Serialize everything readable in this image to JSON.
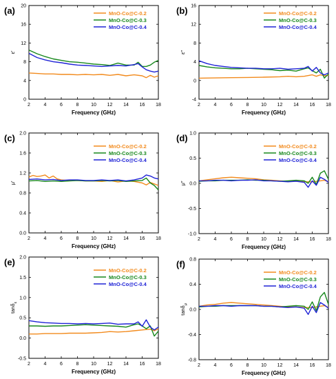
{
  "colors": {
    "s02": "#F28A1C",
    "s03": "#16871B",
    "s04": "#1E22D6"
  },
  "chart_data": [
    {
      "panel_label": "(a)",
      "type": "line",
      "xlabel": "Frequency (GHz)",
      "ylabel": "ε′",
      "xlim": [
        2,
        18
      ],
      "ylim": [
        0,
        20
      ],
      "xticks": [
        "2",
        "4",
        "6",
        "8",
        "10",
        "12",
        "14",
        "16",
        "18"
      ],
      "yticks": [
        "0",
        "4",
        "8",
        "12",
        "16",
        "20"
      ],
      "legend_position": "top-right",
      "series": [
        {
          "name": "MnO-Co@C-0.2",
          "color": "#F28A1C",
          "x": [
            2,
            3,
            4,
            5,
            6,
            7,
            8,
            9,
            10,
            11,
            12,
            13,
            14,
            15,
            16,
            16.5,
            17,
            17.5,
            18
          ],
          "y": [
            5.6,
            5.5,
            5.4,
            5.4,
            5.3,
            5.3,
            5.2,
            5.3,
            5.2,
            5.3,
            5.1,
            5.3,
            5.0,
            5.2,
            5.0,
            4.6,
            5.1,
            4.7,
            5.0
          ]
        },
        {
          "name": "MnO-Co@C-0.3",
          "color": "#16871B",
          "x": [
            2,
            3,
            4,
            5,
            6,
            7,
            8,
            9,
            10,
            11,
            12,
            13,
            14,
            15,
            15.5,
            16,
            16.5,
            17,
            17.5,
            18
          ],
          "y": [
            10.5,
            9.7,
            9.1,
            8.6,
            8.3,
            8.0,
            7.9,
            7.7,
            7.5,
            7.4,
            7.2,
            7.7,
            7.3,
            7.3,
            7.9,
            7.0,
            7.0,
            7.3,
            7.9,
            8.3
          ]
        },
        {
          "name": "MnO-Co@C-0.4",
          "color": "#1E22D6",
          "x": [
            2,
            3,
            4,
            5,
            6,
            7,
            8,
            9,
            10,
            11,
            12,
            13,
            14,
            15,
            15.5,
            16,
            16.5,
            17,
            17.5,
            18
          ],
          "y": [
            9.8,
            8.9,
            8.4,
            8.0,
            7.8,
            7.5,
            7.3,
            7.2,
            7.1,
            7.0,
            7.1,
            7.2,
            7.1,
            7.4,
            7.6,
            6.9,
            6.3,
            6.0,
            5.8,
            6.0
          ]
        }
      ]
    },
    {
      "panel_label": "(b)",
      "type": "line",
      "xlabel": "Frequency (GHz)",
      "ylabel": "ε″",
      "xlim": [
        2,
        18
      ],
      "ylim": [
        -4,
        16
      ],
      "xticks": [
        "2",
        "4",
        "6",
        "8",
        "10",
        "12",
        "14",
        "16",
        "18"
      ],
      "yticks": [
        "-4",
        "0",
        "4",
        "8",
        "12",
        "16"
      ],
      "legend_position": "top-right",
      "series": [
        {
          "name": "MnO-Co@C-0.2",
          "color": "#F28A1C",
          "x": [
            2,
            4,
            6,
            8,
            10,
            12,
            13,
            14,
            15,
            16,
            16.5,
            17,
            17.5,
            18
          ],
          "y": [
            0.5,
            0.55,
            0.6,
            0.65,
            0.7,
            0.8,
            0.9,
            0.8,
            0.9,
            1.2,
            0.9,
            1.2,
            1.0,
            1.1
          ]
        },
        {
          "name": "MnO-Co@C-0.3",
          "color": "#16871B",
          "x": [
            2,
            3,
            4,
            5,
            6,
            7,
            8,
            9,
            10,
            11,
            12,
            13,
            14,
            15,
            15.5,
            16,
            16.5,
            17,
            17.5,
            18
          ],
          "y": [
            3.2,
            2.9,
            2.7,
            2.6,
            2.5,
            2.5,
            2.6,
            2.5,
            2.4,
            2.3,
            2.1,
            2.2,
            2.0,
            2.5,
            2.7,
            2.1,
            1.6,
            2.4,
            0.5,
            1.4
          ]
        },
        {
          "name": "MnO-Co@C-0.4",
          "color": "#1E22D6",
          "x": [
            2,
            3,
            4,
            5,
            6,
            7,
            8,
            9,
            10,
            11,
            12,
            13,
            14,
            15,
            15.5,
            16,
            16.5,
            17,
            17.5,
            18
          ],
          "y": [
            4.2,
            3.6,
            3.2,
            3.0,
            2.8,
            2.7,
            2.6,
            2.6,
            2.5,
            2.5,
            2.6,
            2.4,
            2.5,
            2.6,
            3.0,
            2.0,
            2.8,
            1.6,
            1.2,
            1.6
          ]
        }
      ]
    },
    {
      "panel_label": "(c)",
      "type": "line",
      "xlabel": "Frequency (GHz)",
      "ylabel": "μ′",
      "xlim": [
        2,
        18
      ],
      "ylim": [
        0,
        2.0
      ],
      "xticks": [
        "2",
        "4",
        "6",
        "8",
        "10",
        "12",
        "14",
        "16",
        "18"
      ],
      "yticks": [
        "0.0",
        "0.4",
        "0.8",
        "1.2",
        "1.6",
        "2.0"
      ],
      "legend_position": "top-right",
      "series": [
        {
          "name": "MnO-Co@C-0.2",
          "color": "#F28A1C",
          "x": [
            2,
            2.5,
            3,
            3.5,
            4,
            4.5,
            5,
            5.5,
            6,
            7,
            8,
            9,
            10,
            11,
            12,
            13,
            14,
            15,
            16,
            16.5,
            17,
            17.5,
            18
          ],
          "y": [
            1.12,
            1.15,
            1.13,
            1.14,
            1.16,
            1.1,
            1.14,
            1.08,
            1.06,
            1.05,
            1.05,
            1.04,
            1.04,
            1.03,
            1.05,
            1.02,
            1.04,
            1.03,
            1.0,
            0.96,
            1.01,
            0.98,
            0.95
          ]
        },
        {
          "name": "MnO-Co@C-0.3",
          "color": "#16871B",
          "x": [
            2,
            3,
            4,
            5,
            6,
            7,
            8,
            9,
            10,
            11,
            12,
            13,
            14,
            15,
            16,
            16.5,
            17,
            17.5,
            18
          ],
          "y": [
            1.04,
            1.05,
            1.03,
            1.04,
            1.03,
            1.04,
            1.05,
            1.04,
            1.04,
            1.05,
            1.04,
            1.05,
            1.03,
            1.04,
            1.05,
            1.1,
            1.0,
            0.95,
            0.86
          ]
        },
        {
          "name": "MnO-Co@C-0.4",
          "color": "#1E22D6",
          "x": [
            2,
            3,
            4,
            5,
            6,
            7,
            8,
            9,
            10,
            11,
            12,
            13,
            14,
            15,
            16,
            16.5,
            17,
            17.5,
            18
          ],
          "y": [
            1.07,
            1.08,
            1.06,
            1.07,
            1.05,
            1.06,
            1.06,
            1.05,
            1.05,
            1.06,
            1.05,
            1.06,
            1.04,
            1.06,
            1.1,
            1.16,
            1.14,
            1.1,
            1.08
          ]
        }
      ]
    },
    {
      "panel_label": "(d)",
      "type": "line",
      "xlabel": "Frequency (GHz)",
      "ylabel": "μ″",
      "xlim": [
        2,
        18
      ],
      "ylim": [
        -1.0,
        1.0
      ],
      "xticks": [
        "2",
        "4",
        "6",
        "8",
        "10",
        "12",
        "14",
        "16",
        "18"
      ],
      "yticks": [
        "-1.0",
        "-0.5",
        "0.0",
        "0.5",
        "1.0"
      ],
      "legend_position": "top-right",
      "series": [
        {
          "name": "MnO-Co@C-0.2",
          "color": "#F28A1C",
          "x": [
            2,
            3,
            4,
            5,
            6,
            7,
            8,
            9,
            10,
            11,
            12,
            13,
            14,
            15,
            16,
            17,
            17.5,
            18
          ],
          "y": [
            0.05,
            0.07,
            0.09,
            0.11,
            0.12,
            0.11,
            0.1,
            0.09,
            0.07,
            0.06,
            0.05,
            0.04,
            0.04,
            0.03,
            0.03,
            0.05,
            0.06,
            0.03
          ]
        },
        {
          "name": "MnO-Co@C-0.3",
          "color": "#16871B",
          "x": [
            2,
            3,
            4,
            5,
            6,
            7,
            8,
            9,
            10,
            11,
            12,
            13,
            14,
            15,
            15.5,
            16,
            16.5,
            17,
            17.5,
            18
          ],
          "y": [
            0.04,
            0.05,
            0.05,
            0.06,
            0.06,
            0.06,
            0.07,
            0.06,
            0.06,
            0.05,
            0.04,
            0.05,
            0.06,
            0.05,
            0.0,
            0.12,
            -0.02,
            0.2,
            0.25,
            0.08
          ]
        },
        {
          "name": "MnO-Co@C-0.4",
          "color": "#1E22D6",
          "x": [
            2,
            3,
            4,
            5,
            6,
            7,
            8,
            9,
            10,
            11,
            12,
            13,
            14,
            15,
            15.5,
            16,
            16.5,
            17,
            17.5,
            18
          ],
          "y": [
            0.05,
            0.05,
            0.06,
            0.06,
            0.05,
            0.06,
            0.06,
            0.07,
            0.05,
            0.05,
            0.04,
            0.03,
            0.04,
            0.02,
            -0.08,
            0.05,
            -0.04,
            0.12,
            0.08,
            0.02
          ]
        }
      ]
    },
    {
      "panel_label": "(e)",
      "type": "line",
      "xlabel": "Frequency (GHz)",
      "ylabel": "tanδε",
      "xlim": [
        2,
        18
      ],
      "ylim": [
        -0.5,
        2.0
      ],
      "xticks": [
        "2",
        "4",
        "6",
        "8",
        "10",
        "12",
        "14",
        "16",
        "18"
      ],
      "yticks": [
        "-0.5",
        "0.0",
        "0.5",
        "1.0",
        "1.5",
        "2.0"
      ],
      "legend_position": "top-right",
      "series": [
        {
          "name": "MnO-Co@C-0.2",
          "color": "#F28A1C",
          "x": [
            2,
            3,
            4,
            5,
            6,
            7,
            8,
            9,
            10,
            11,
            12,
            13,
            14,
            15,
            16,
            17,
            17.5,
            18
          ],
          "y": [
            0.1,
            0.1,
            0.11,
            0.11,
            0.11,
            0.12,
            0.12,
            0.12,
            0.13,
            0.14,
            0.16,
            0.15,
            0.16,
            0.18,
            0.2,
            0.22,
            0.18,
            0.23
          ]
        },
        {
          "name": "MnO-Co@C-0.3",
          "color": "#16871B",
          "x": [
            2,
            3,
            4,
            5,
            6,
            7,
            8,
            9,
            10,
            11,
            12,
            13,
            14,
            15,
            15.5,
            16,
            16.5,
            17,
            17.5,
            18
          ],
          "y": [
            0.3,
            0.3,
            0.29,
            0.3,
            0.3,
            0.31,
            0.32,
            0.33,
            0.32,
            0.31,
            0.3,
            0.29,
            0.27,
            0.33,
            0.35,
            0.3,
            0.23,
            0.3,
            0.05,
            0.17
          ]
        },
        {
          "name": "MnO-Co@C-0.4",
          "color": "#1E22D6",
          "x": [
            2,
            3,
            4,
            5,
            6,
            7,
            8,
            9,
            10,
            11,
            12,
            13,
            14,
            15,
            15.5,
            16,
            16.5,
            17,
            17.5,
            18
          ],
          "y": [
            0.43,
            0.4,
            0.38,
            0.37,
            0.36,
            0.36,
            0.35,
            0.36,
            0.35,
            0.36,
            0.37,
            0.34,
            0.35,
            0.35,
            0.4,
            0.29,
            0.45,
            0.27,
            0.2,
            0.27
          ]
        }
      ]
    },
    {
      "panel_label": "(f)",
      "type": "line",
      "xlabel": "Frequency (GHz)",
      "ylabel": "tanδμ",
      "xlim": [
        2,
        18
      ],
      "ylim": [
        -0.8,
        0.8
      ],
      "xticks": [
        "2",
        "4",
        "6",
        "8",
        "10",
        "12",
        "14",
        "16",
        "18"
      ],
      "yticks": [
        "-0.8",
        "-0.4",
        "0.0",
        "0.4",
        "0.8"
      ],
      "legend_position": "top-right",
      "series": [
        {
          "name": "MnO-Co@C-0.2",
          "color": "#F28A1C",
          "x": [
            2,
            3,
            4,
            5,
            6,
            7,
            8,
            9,
            10,
            11,
            12,
            13,
            14,
            15,
            16,
            17,
            17.5,
            18
          ],
          "y": [
            0.05,
            0.07,
            0.08,
            0.1,
            0.11,
            0.1,
            0.09,
            0.08,
            0.07,
            0.06,
            0.05,
            0.04,
            0.04,
            0.03,
            0.03,
            0.05,
            0.06,
            0.03
          ]
        },
        {
          "name": "MnO-Co@C-0.3",
          "color": "#16871B",
          "x": [
            2,
            3,
            4,
            5,
            6,
            7,
            8,
            9,
            10,
            11,
            12,
            13,
            14,
            15,
            15.5,
            16,
            16.5,
            17,
            17.5,
            18
          ],
          "y": [
            0.04,
            0.05,
            0.05,
            0.06,
            0.06,
            0.06,
            0.06,
            0.06,
            0.05,
            0.05,
            0.04,
            0.05,
            0.06,
            0.05,
            0.0,
            0.12,
            -0.02,
            0.2,
            0.27,
            0.08
          ]
        },
        {
          "name": "MnO-Co@C-0.4",
          "color": "#1E22D6",
          "x": [
            2,
            3,
            4,
            5,
            6,
            7,
            8,
            9,
            10,
            11,
            12,
            13,
            14,
            15,
            15.5,
            16,
            16.5,
            17,
            17.5,
            18
          ],
          "y": [
            0.05,
            0.05,
            0.06,
            0.06,
            0.05,
            0.06,
            0.06,
            0.06,
            0.05,
            0.05,
            0.04,
            0.03,
            0.04,
            0.02,
            -0.08,
            0.05,
            -0.05,
            0.11,
            0.07,
            0.02
          ]
        }
      ]
    }
  ]
}
